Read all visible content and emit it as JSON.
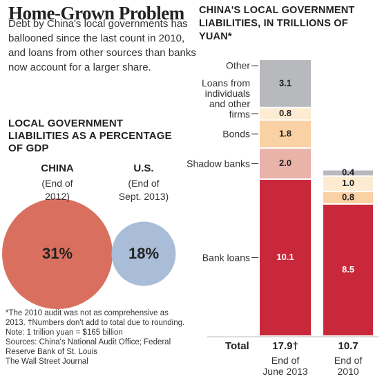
{
  "title": "Home-Grown Problem",
  "description": "Debt by China's local governments has ballooned since the last count in 2010, and loans from other sources than banks now account for a larger share.",
  "chart_data": [
    {
      "type": "bubble",
      "title": "LOCAL GOVERNMENT LIABILITIES AS A PERCENTAGE OF GDP",
      "categories": [
        "CHINA",
        "U.S."
      ],
      "subtitles": [
        "(End of 2012)",
        "(End of Sept. 2013)"
      ],
      "values": [
        31,
        18
      ],
      "value_labels": [
        "31%",
        "18%"
      ],
      "colors": [
        "#d9705f",
        "#a9bdd8"
      ]
    },
    {
      "type": "stacked-bar",
      "title": "CHINA'S LOCAL GOVERNMENT LIABILITIES, IN TRILLIONS OF YUAN*",
      "categories": [
        "End of June 2013",
        "End of 2010"
      ],
      "total_title": "Total",
      "totals": [
        {
          "value": 17.9,
          "label": "17.9†"
        },
        10.7
      ],
      "series": [
        {
          "name": "Bank loans",
          "color": "#c8283a",
          "values": [
            10.1,
            8.5
          ]
        },
        {
          "name": "Shadow banks",
          "color": "#e9b3aa",
          "values": [
            2.0,
            null
          ],
          "value_labels": [
            "2.0",
            null
          ]
        },
        {
          "name": "Bonds",
          "color": "#f9d1a4",
          "values": [
            1.8,
            0.8
          ]
        },
        {
          "name": "Loans from individuals and other firms",
          "color": "#fdebd2",
          "values": [
            0.8,
            1.0
          ],
          "value_labels": [
            "0.8",
            "1.0"
          ]
        },
        {
          "name": "Other",
          "color": "#b8b9bd",
          "values": [
            3.1,
            0.4
          ]
        }
      ]
    }
  ],
  "notes": [
    "*The 2010 audit was not as comprehensive as 2013. †Numbers don't add to total due to rounding. Note: 1 trillion yuan = $165 billion",
    "Sources: China's National Audit Office; Federal Reserve Bank of St. Louis",
    "The Wall Street Journal"
  ]
}
